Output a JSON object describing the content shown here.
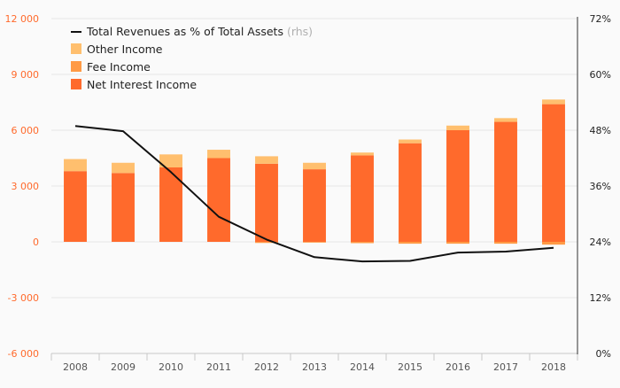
{
  "chart_data": {
    "type": "bar",
    "stacked": true,
    "categories": [
      "2008",
      "2009",
      "2010",
      "2011",
      "2012",
      "2013",
      "2014",
      "2015",
      "2016",
      "2017",
      "2018"
    ],
    "series": [
      {
        "name": "Net Interest Income",
        "color": "#ff6a2c",
        "values": [
          3800,
          3700,
          4000,
          4500,
          4200,
          3900,
          4650,
          5300,
          6000,
          6450,
          7400
        ]
      },
      {
        "name": "Fee Income",
        "color": "#ff9a45",
        "values": [
          0,
          0,
          0,
          0,
          -60,
          -40,
          -70,
          -100,
          -100,
          -100,
          -150
        ]
      },
      {
        "name": "Other Income",
        "color": "#ffbf6e",
        "values": [
          650,
          550,
          700,
          450,
          400,
          350,
          150,
          200,
          250,
          200,
          250
        ]
      }
    ],
    "line_series": {
      "name": "Total Revenues as % of Total Assets",
      "suffix": "(rhs)",
      "axis": "right",
      "color": "#111111",
      "values": [
        48.9,
        47.8,
        39.0,
        29.4,
        24.5,
        20.7,
        19.8,
        19.9,
        21.7,
        21.9,
        22.7
      ]
    },
    "left_axis": {
      "ylim": [
        -6000,
        12000
      ],
      "ticks": [
        12000,
        9000,
        6000,
        3000,
        0,
        -3000,
        -6000
      ],
      "tick_labels": [
        "12 000",
        "9 000",
        "6 000",
        "3 000",
        "0",
        "-3 000",
        "-6 000"
      ],
      "color": "#ff6a2c"
    },
    "right_axis": {
      "ylim": [
        0,
        72
      ],
      "ticks": [
        72,
        60,
        48,
        36,
        24,
        12,
        0
      ],
      "tick_labels": [
        "72%",
        "60%",
        "48%",
        "36%",
        "24%",
        "12%",
        "0%"
      ]
    },
    "legend": {
      "placement": "top-left",
      "order": [
        "line",
        "Other Income",
        "Fee Income",
        "Net Interest Income"
      ]
    },
    "grid": true,
    "title": "",
    "xlabel": "",
    "ylabel": ""
  }
}
